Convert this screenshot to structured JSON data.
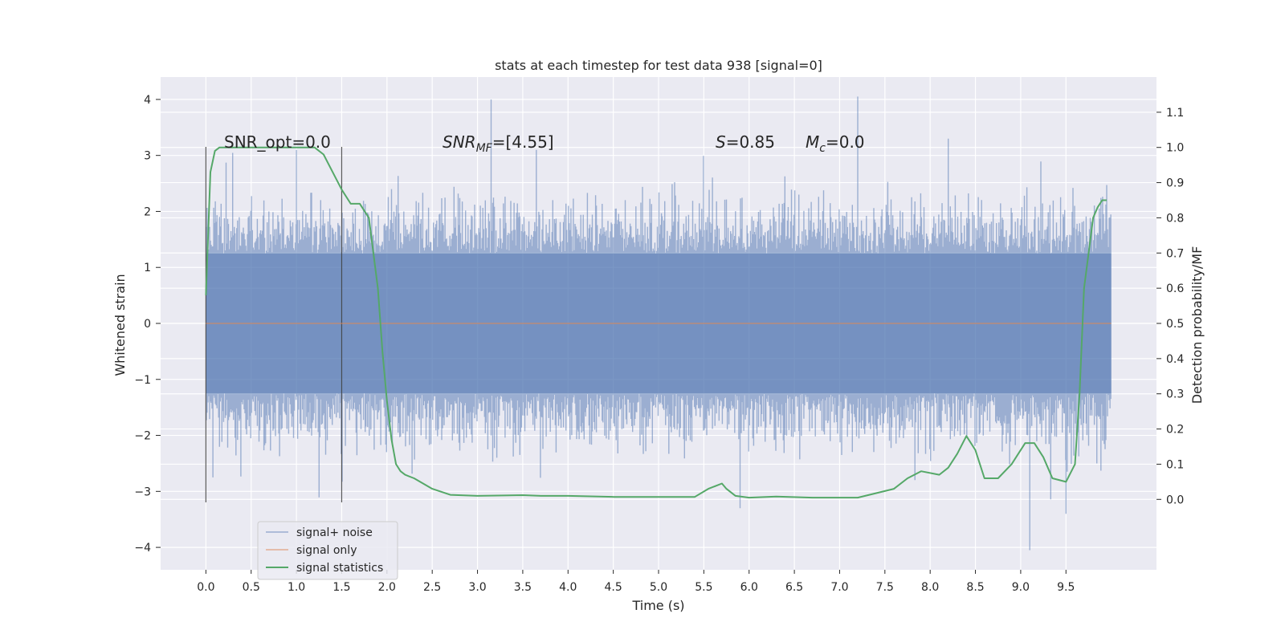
{
  "chart_data": {
    "type": "line",
    "title": "stats at each timestep for test data 938 [signal=0]",
    "xlabel": "Time (s)",
    "ylabel_left": "Whitened strain",
    "ylabel_right": "Detection probability/MF",
    "xlim": [
      -0.5,
      10.5
    ],
    "ylim_left": [
      -4.4,
      4.4
    ],
    "ylim_right": [
      -0.2,
      1.2
    ],
    "x_ticks": [
      "0.0",
      "0.5",
      "1.0",
      "1.5",
      "2.0",
      "2.5",
      "3.0",
      "3.5",
      "4.0",
      "4.5",
      "5.0",
      "5.5",
      "6.0",
      "6.5",
      "7.0",
      "7.5",
      "8.0",
      "8.5",
      "9.0",
      "9.5"
    ],
    "y_left_ticks": [
      "4",
      "3",
      "2",
      "1",
      "0",
      "−1",
      "−2",
      "−3",
      "−4"
    ],
    "y_right_ticks": [
      "1.1",
      "1.0",
      "0.9",
      "0.8",
      "0.7",
      "0.6",
      "0.5",
      "0.4",
      "0.3",
      "0.2",
      "0.1",
      "0.0"
    ],
    "grid": true,
    "legend_position": "lower-left",
    "series": [
      {
        "name": "signal+ noise",
        "color": "#4c72b0",
        "x_range": [
          0,
          10
        ],
        "description": "dense whitened noise, typical amplitude ±1.3, peaks to about ±4",
        "peaks": [
          [
            1.0,
            3.1
          ],
          [
            3.15,
            4.0
          ],
          [
            3.65,
            3.1
          ],
          [
            5.9,
            -3.3
          ],
          [
            7.2,
            4.05
          ],
          [
            8.2,
            3.3
          ],
          [
            9.1,
            -4.05
          ],
          [
            9.5,
            -3.4
          ]
        ]
      },
      {
        "name": "signal only",
        "color": "#dd8452",
        "x": [
          0,
          10
        ],
        "y": [
          0,
          0
        ]
      },
      {
        "name": "signal statistics",
        "color": "#55a868",
        "axis": "right",
        "x": [
          0.0,
          0.05,
          0.1,
          0.15,
          0.2,
          0.3,
          0.5,
          0.8,
          1.0,
          1.2,
          1.3,
          1.4,
          1.5,
          1.6,
          1.7,
          1.8,
          1.9,
          1.95,
          2.0,
          2.05,
          2.1,
          2.15,
          2.2,
          2.3,
          2.5,
          2.7,
          3.0,
          3.5,
          3.7,
          4.0,
          4.5,
          5.0,
          5.4,
          5.55,
          5.7,
          5.75,
          5.85,
          6.0,
          6.3,
          6.7,
          7.2,
          7.6,
          7.75,
          7.9,
          8.1,
          8.2,
          8.3,
          8.4,
          8.5,
          8.6,
          8.75,
          8.9,
          9.05,
          9.15,
          9.25,
          9.35,
          9.5,
          9.6,
          9.65,
          9.7,
          9.75,
          9.8,
          9.85,
          9.9,
          9.95
        ],
        "y": [
          0.58,
          0.93,
          0.99,
          1.0,
          1.0,
          1.0,
          1.0,
          1.0,
          1.0,
          1.0,
          0.98,
          0.93,
          0.88,
          0.84,
          0.84,
          0.8,
          0.6,
          0.42,
          0.28,
          0.17,
          0.1,
          0.08,
          0.07,
          0.06,
          0.03,
          0.013,
          0.01,
          0.012,
          0.01,
          0.01,
          0.007,
          0.007,
          0.007,
          0.03,
          0.045,
          0.03,
          0.01,
          0.005,
          0.008,
          0.005,
          0.005,
          0.03,
          0.06,
          0.08,
          0.07,
          0.09,
          0.13,
          0.18,
          0.14,
          0.06,
          0.06,
          0.1,
          0.16,
          0.16,
          0.12,
          0.06,
          0.05,
          0.1,
          0.3,
          0.6,
          0.7,
          0.8,
          0.83,
          0.85,
          0.85
        ]
      }
    ],
    "vlines": [
      0.0,
      1.5
    ],
    "annotations": {
      "snr_opt": "SNR_opt=0.0",
      "snr_mf_label": "SNR",
      "snr_mf_sub": "MF",
      "snr_mf_tail": "=[4.55]",
      "s_label": "S",
      "s_tail": "=0.85",
      "mc_label": "M",
      "mc_sub": "c",
      "mc_tail": "=0.0"
    }
  }
}
